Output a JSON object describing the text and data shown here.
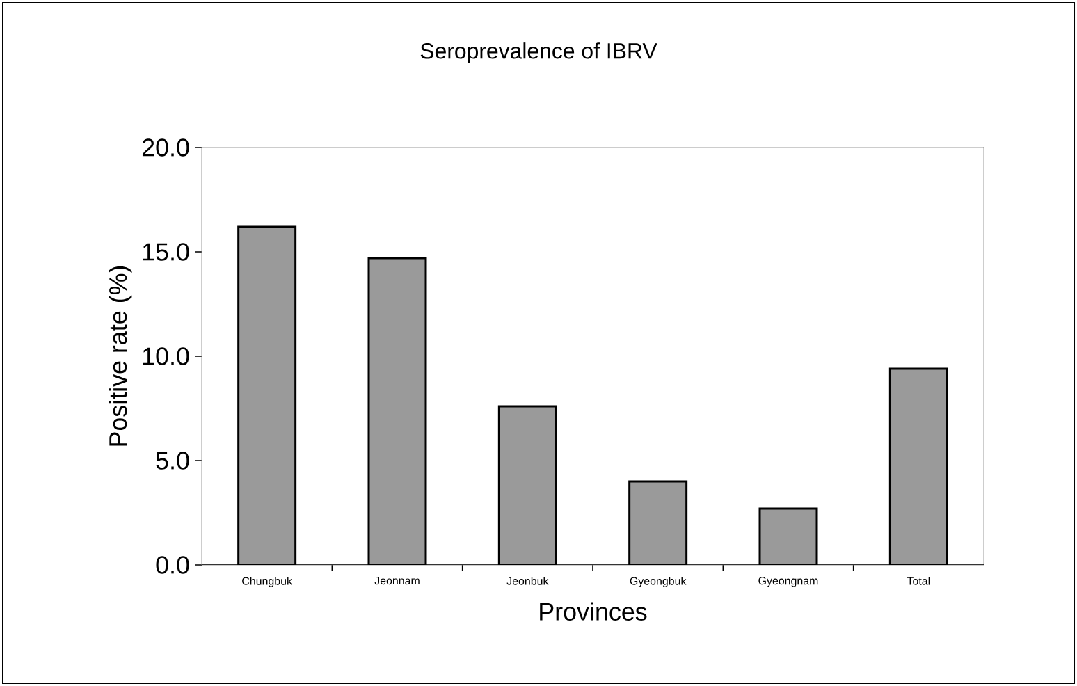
{
  "chart_data": {
    "type": "bar",
    "title": "Seroprevalence of IBRV",
    "xlabel": "Provinces",
    "ylabel": "Positive rate (%)",
    "categories": [
      "Chungbuk",
      "Jeonnam",
      "Jeonbuk",
      "Gyeongbuk",
      "Gyeongnam",
      "Total"
    ],
    "values": [
      16.2,
      14.7,
      7.6,
      4.0,
      2.7,
      9.4
    ],
    "color": "#9a9a9a",
    "ylim": [
      0,
      20
    ],
    "yticks": [
      {
        "value": 0,
        "label": "0.0"
      },
      {
        "value": 5,
        "label": "5.0"
      },
      {
        "value": 10,
        "label": "10.0"
      },
      {
        "value": 15,
        "label": "15.0"
      },
      {
        "value": 20,
        "label": "20.0"
      }
    ],
    "grid": false
  }
}
